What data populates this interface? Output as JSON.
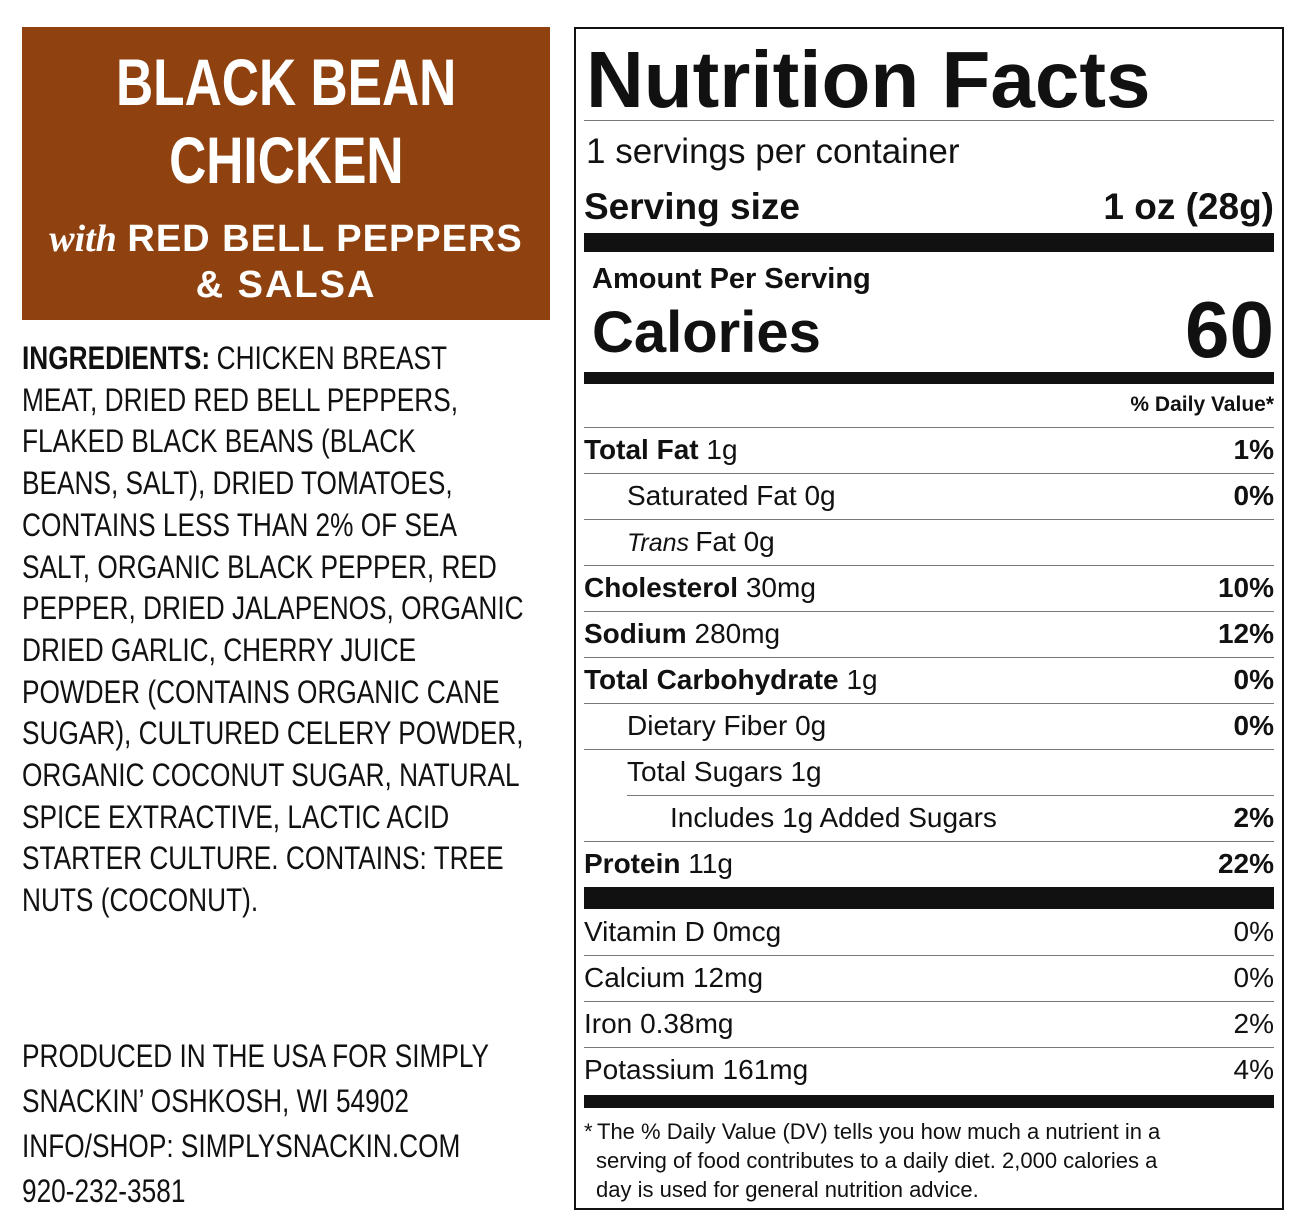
{
  "product": {
    "title_lines": [
      "BLACK BEAN",
      "CHICKEN"
    ],
    "subtitle_prefix": "with",
    "subtitle_lines": [
      "RED BELL PEPPERS",
      "& SALSA"
    ]
  },
  "ingredients": {
    "label": "INGREDIENTS:",
    "lines": [
      "CHICKEN BREAST",
      "MEAT, DRIED RED BELL PEPPERS,",
      "FLAKED BLACK BEANS (BLACK",
      "BEANS, SALT), DRIED TOMATOES,",
      "CONTAINS LESS THAN 2% OF SEA",
      "SALT, ORGANIC BLACK PEPPER, RED",
      "PEPPER, DRIED JALAPENOS, ORGANIC",
      "DRIED GARLIC, CHERRY JUICE",
      "POWDER (CONTAINS ORGANIC CANE",
      "SUGAR), CULTURED CELERY POWDER,",
      "ORGANIC COCONUT SUGAR, NATURAL",
      "SPICE EXTRACTIVE, LACTIC ACID",
      "STARTER CULTURE. CONTAINS: TREE",
      "NUTS (COCONUT)."
    ]
  },
  "producer": {
    "lines": [
      "PRODUCED IN THE USA FOR SIMPLY",
      "SNACKIN’ OSHKOSH, WI 54902",
      "INFO/SHOP: SIMPLYSNACKIN.COM",
      "920-232-3581"
    ]
  },
  "nutrition_facts": {
    "title": "Nutrition Facts",
    "servings": "1 servings per container",
    "serving_size_label": "Serving size",
    "serving_size_value": "1 oz (28g)",
    "amount_per_serving": "Amount Per Serving",
    "calories_label": "Calories",
    "calories_value": 60,
    "dv_header": "% Daily Value*",
    "nutrients": [
      {
        "name": "Total Fat",
        "amount": "1g",
        "dv": "1%"
      },
      {
        "name": "Saturated Fat",
        "amount": "0g",
        "dv": "0%"
      },
      {
        "qualifier": "Trans",
        "name": "Fat",
        "amount": "0g"
      },
      {
        "name": "Cholesterol",
        "amount": "30mg",
        "dv": "10%"
      },
      {
        "name": "Sodium",
        "amount": "280mg",
        "dv": "12%"
      },
      {
        "name": "Total Carbohydrate",
        "amount": "1g",
        "dv": "0%"
      },
      {
        "name": "Dietary Fiber",
        "amount": "0g",
        "dv": "0%"
      },
      {
        "name": "Total Sugars",
        "amount": "1g"
      },
      {
        "name": "Includes 1g Added Sugars",
        "dv": "2%"
      },
      {
        "name": "Protein",
        "amount": "11g",
        "dv": "22%"
      }
    ],
    "vitamins": [
      {
        "name": "Vitamin D",
        "amount": "0mcg",
        "dv": "0%"
      },
      {
        "name": "Calcium",
        "amount": "12mg",
        "dv": "0%"
      },
      {
        "name": "Iron",
        "amount": "0.38mg",
        "dv": "2%"
      },
      {
        "name": "Potassium",
        "amount": "161mg",
        "dv": "4%"
      }
    ],
    "footnote_mark": "*",
    "footnote_lines": [
      "The % Daily Value (DV) tells you how much a nutrient in a",
      "serving of food contributes to a daily diet. 2,000 calories a",
      "day is used for general nutrition advice."
    ]
  }
}
